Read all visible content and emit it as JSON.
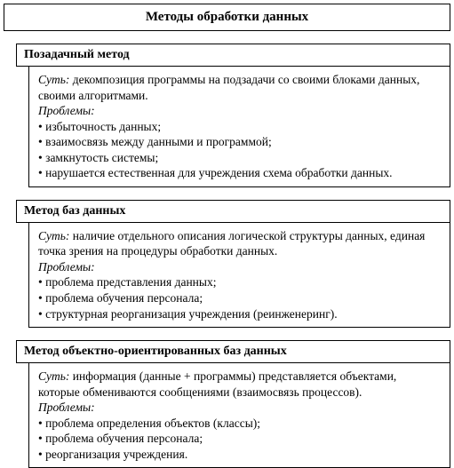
{
  "main_title": "Методы обработки данных",
  "sections": [
    {
      "title": "Позадачный метод",
      "essence_label": "Суть:",
      "essence": " декомпозиция программы на  подзадачи со своими блоками данных, своими алгоритмами.",
      "problems_label": "Проблемы:",
      "problems": [
        "избыточность данных;",
        "взаимосвязь  между данными и программой;",
        "замкнутость системы;",
        "нарушается естественная для учреждения схема обработки данных."
      ]
    },
    {
      "title": "Метод баз данных",
      "essence_label": "Суть:",
      "essence": " наличие отдельного описания логической структуры данных, единая точка зрения на процедуры обработки данных.",
      "problems_label": "Проблемы:",
      "problems": [
        "проблема представления данных;",
        "проблема обучения персонала;",
        "структурная реорганизация учреждения (реинженеринг)."
      ]
    },
    {
      "title": "Метод объектно-ориентированных баз данных",
      "essence_label": "Суть:",
      "essence": " информация (данные + программы) представляется объектами, которые обмениваются сообщениями (взаимосвязь процессов).",
      "problems_label": "Проблемы:",
      "problems": [
        "проблема определения объектов (классы);",
        "проблема обучения персонала;",
        "реорганизация учреждения."
      ]
    }
  ],
  "colors": {
    "background": "#ffffff",
    "border": "#000000",
    "text": "#000000"
  },
  "typography": {
    "title_fontsize": 15,
    "section_title_fontsize": 14,
    "body_fontsize": 13.5,
    "font_family": "Times New Roman"
  }
}
